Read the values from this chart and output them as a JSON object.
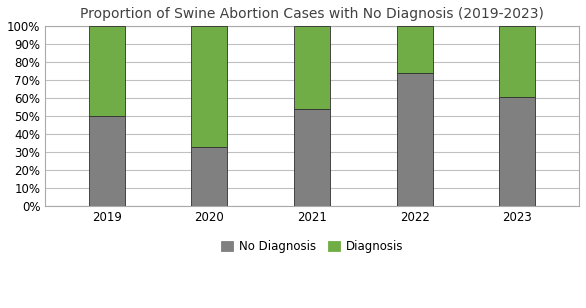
{
  "title": "Proportion of Swine Abortion Cases with No Diagnosis (2019-2023)",
  "categories": [
    "2019",
    "2020",
    "2021",
    "2022",
    "2023"
  ],
  "no_diagnosis": [
    0.5,
    0.33,
    0.54,
    0.74,
    0.61
  ],
  "diagnosis": [
    0.5,
    0.67,
    0.46,
    0.26,
    0.39
  ],
  "color_no_diagnosis": "#808080",
  "color_diagnosis": "#70AD47",
  "bar_width": 0.35,
  "ylim": [
    0,
    1.0
  ],
  "ytick_labels": [
    "0%",
    "10%",
    "20%",
    "30%",
    "40%",
    "50%",
    "60%",
    "70%",
    "80%",
    "90%",
    "100%"
  ],
  "ytick_values": [
    0.0,
    0.1,
    0.2,
    0.3,
    0.4,
    0.5,
    0.6,
    0.7,
    0.8,
    0.9,
    1.0
  ],
  "legend_no_diagnosis": "No Diagnosis",
  "legend_diagnosis": "Diagnosis",
  "title_fontsize": 10,
  "tick_fontsize": 8.5,
  "legend_fontsize": 8.5,
  "background_color": "#FFFFFF",
  "plot_bg_color": "#FFFFFF",
  "grid_color": "#C0C0C0",
  "title_color": "#404040",
  "spine_color": "#AAAAAA",
  "outer_border_color": "#AAAAAA"
}
